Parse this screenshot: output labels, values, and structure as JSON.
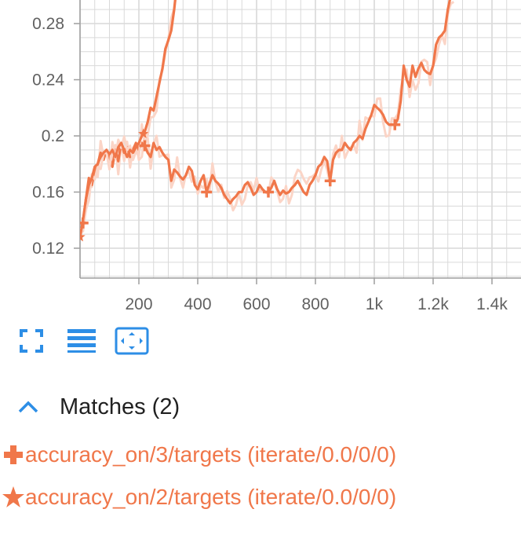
{
  "colors": {
    "series": "#f0774a",
    "series_faint": "#fbd5c7",
    "grid": "#d9d9d9",
    "axis": "#9e9e9e",
    "accent": "#2d8ee6",
    "text": "#212121"
  },
  "chart_data": {
    "type": "line",
    "title": "",
    "xlabel": "",
    "ylabel": "",
    "xlim": [
      0,
      1500
    ],
    "ylim": [
      0.1,
      0.3
    ],
    "x_ticks": [
      200,
      400,
      600,
      800,
      1000,
      1200,
      1400
    ],
    "x_tick_labels": [
      "200",
      "400",
      "600",
      "800",
      "1k",
      "1.2k",
      "1.4k"
    ],
    "y_ticks": [
      0.12,
      0.16,
      0.2,
      0.24,
      0.28
    ],
    "y_tick_labels": [
      "0.12",
      "0.16",
      "0.2",
      "0.24",
      "0.28"
    ],
    "grid": true,
    "series": [
      {
        "name": "accuracy_on/3/targets (iterate/0.0/0/0)",
        "marker": "plus",
        "marker_x": [
          10,
          220,
          430,
          640,
          850,
          1070
        ],
        "x": [
          0,
          10,
          20,
          30,
          40,
          50,
          60,
          70,
          80,
          90,
          100,
          110,
          120,
          130,
          140,
          150,
          160,
          170,
          180,
          190,
          200,
          210,
          220,
          230,
          240,
          250,
          260,
          270,
          280,
          290,
          300,
          310,
          320,
          330,
          340,
          350,
          360,
          370,
          380,
          390,
          400,
          410,
          420,
          430,
          440,
          450,
          460,
          470,
          480,
          490,
          500,
          510,
          520,
          530,
          540,
          550,
          560,
          570,
          580,
          590,
          600,
          610,
          620,
          630,
          640,
          650,
          660,
          670,
          680,
          690,
          700,
          710,
          720,
          730,
          740,
          750,
          760,
          770,
          780,
          790,
          800,
          810,
          820,
          830,
          840,
          850,
          860,
          870,
          880,
          890,
          900,
          910,
          920,
          930,
          940,
          950,
          960,
          970,
          980,
          990,
          1000,
          1010,
          1020,
          1030,
          1040,
          1050,
          1060,
          1070,
          1080,
          1090,
          1100,
          1110,
          1120,
          1130,
          1140,
          1150,
          1160,
          1170,
          1180,
          1190,
          1200,
          1210,
          1220,
          1230,
          1240,
          1250,
          1260,
          1270
        ],
        "y": [
          0.128,
          0.138,
          0.155,
          0.17,
          0.165,
          0.175,
          0.18,
          0.188,
          0.183,
          0.19,
          0.185,
          0.178,
          0.19,
          0.182,
          0.195,
          0.188,
          0.192,
          0.185,
          0.19,
          0.195,
          0.19,
          0.195,
          0.193,
          0.188,
          0.185,
          0.195,
          0.19,
          0.192,
          0.188,
          0.185,
          0.183,
          0.168,
          0.176,
          0.174,
          0.171,
          0.169,
          0.172,
          0.178,
          0.175,
          0.165,
          0.162,
          0.168,
          0.172,
          0.16,
          0.166,
          0.172,
          0.168,
          0.166,
          0.163,
          0.158,
          0.155,
          0.152,
          0.155,
          0.157,
          0.16,
          0.16,
          0.165,
          0.167,
          0.163,
          0.158,
          0.16,
          0.165,
          0.162,
          0.16,
          0.16,
          0.163,
          0.168,
          0.162,
          0.158,
          0.161,
          0.159,
          0.16,
          0.163,
          0.165,
          0.168,
          0.164,
          0.16,
          0.158,
          0.165,
          0.168,
          0.172,
          0.178,
          0.18,
          0.185,
          0.182,
          0.168,
          0.183,
          0.188,
          0.19,
          0.19,
          0.195,
          0.192,
          0.19,
          0.195,
          0.197,
          0.2,
          0.198,
          0.205,
          0.21,
          0.215,
          0.222,
          0.22,
          0.218,
          0.215,
          0.21,
          0.208,
          0.208,
          0.208,
          0.212,
          0.225,
          0.25,
          0.24,
          0.235,
          0.25,
          0.242,
          0.248,
          0.252,
          0.247,
          0.245,
          0.244,
          0.25,
          0.265,
          0.27,
          0.272,
          0.275,
          0.29,
          0.3,
          0.3
        ]
      },
      {
        "name": "accuracy_on/2/targets (iterate/0.0/0/0)",
        "marker": "star",
        "marker_x": [
          0,
          215
        ],
        "x": [
          0,
          10,
          20,
          30,
          40,
          50,
          60,
          70,
          80,
          90,
          100,
          110,
          120,
          130,
          140,
          150,
          160,
          170,
          180,
          190,
          200,
          210,
          220,
          230,
          240,
          250,
          260,
          270,
          280,
          290,
          300,
          310,
          320,
          325
        ],
        "y": [
          0.128,
          0.14,
          0.155,
          0.165,
          0.17,
          0.178,
          0.18,
          0.185,
          0.188,
          0.19,
          0.187,
          0.19,
          0.185,
          0.192,
          0.195,
          0.19,
          0.185,
          0.19,
          0.188,
          0.192,
          0.195,
          0.2,
          0.203,
          0.21,
          0.22,
          0.218,
          0.228,
          0.238,
          0.248,
          0.262,
          0.268,
          0.275,
          0.29,
          0.3
        ]
      }
    ]
  },
  "toolbar": {
    "buttons": [
      {
        "icon": "fullscreen-icon"
      },
      {
        "icon": "list-icon"
      },
      {
        "icon": "fit-domain-icon"
      }
    ]
  },
  "matches": {
    "title": "Matches (2)",
    "items": [
      {
        "label": "accuracy_on/3/targets (iterate/0.0/0/0)",
        "marker": "plus"
      },
      {
        "label": "accuracy_on/2/targets (iterate/0.0/0/0)",
        "marker": "star"
      }
    ]
  }
}
